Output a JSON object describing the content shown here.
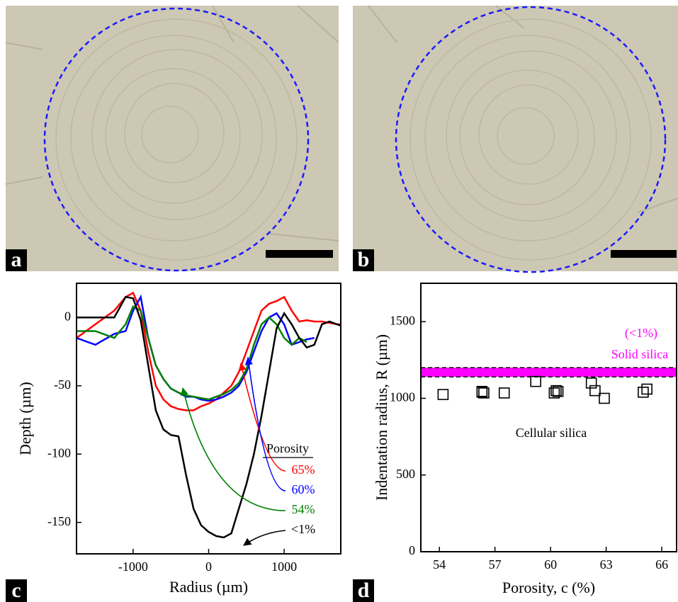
{
  "panels": [
    "a",
    "b",
    "c",
    "d"
  ],
  "chart_data": [
    {
      "type": "line",
      "xlabel": "Radius (µm)",
      "ylabel": "Depth (µm)",
      "xlim": [
        -1750,
        1750
      ],
      "xticks": [
        -1000,
        0,
        1000
      ],
      "ylim": [
        -173,
        25
      ],
      "yticks": [
        0,
        -50,
        -100,
        -150
      ],
      "legend_title": "Porosity",
      "x": [
        -1750,
        -1500,
        -1250,
        -1100,
        -1000,
        -900,
        -800,
        -700,
        -600,
        -500,
        -400,
        -300,
        -200,
        -100,
        0,
        100,
        200,
        300,
        400,
        500,
        600,
        700,
        800,
        900,
        1000,
        1100,
        1200,
        1300,
        1400,
        1500,
        1600,
        1700,
        1750
      ],
      "series": [
        {
          "name": "65%",
          "color": "#ff0000",
          "values": [
            -15,
            -5,
            5,
            15,
            18,
            5,
            -25,
            -50,
            -60,
            -65,
            -67,
            -68,
            -68,
            -65,
            -63,
            -60,
            -55,
            -50,
            -40,
            -25,
            -10,
            5,
            10,
            12,
            15,
            5,
            -3,
            -2,
            -3,
            -3,
            -4,
            -5,
            -5
          ]
        },
        {
          "name": "60%",
          "color": "#0000ff",
          "values": [
            -15,
            -20,
            -12,
            -10,
            5,
            15,
            -15,
            -35,
            -45,
            -52,
            -55,
            -58,
            -58,
            -60,
            -61,
            -60,
            -58,
            -55,
            -50,
            -40,
            -25,
            -10,
            0,
            3,
            -5,
            -20,
            -18,
            -16,
            -15,
            null,
            null,
            null,
            null
          ]
        },
        {
          "name": "54%",
          "color": "#008000",
          "values": [
            -10,
            -10,
            -15,
            -5,
            8,
            5,
            -15,
            -35,
            -45,
            -52,
            -55,
            -57,
            -58,
            -59,
            -60,
            -58,
            -56,
            -53,
            -48,
            -38,
            -20,
            -5,
            0,
            -5,
            -15,
            -20,
            -15,
            -18,
            null,
            null,
            null,
            null,
            null
          ]
        },
        {
          "name": "<1%",
          "color": "#000000",
          "values": [
            0,
            0,
            0,
            15,
            14,
            -2,
            -35,
            -68,
            -82,
            -86,
            -87,
            -115,
            -140,
            -152,
            -157,
            -160,
            -161,
            -158,
            -140,
            -122,
            -100,
            -72,
            -40,
            -8,
            3,
            -5,
            -15,
            -22,
            -20,
            -5,
            -3,
            -5,
            -6
          ]
        }
      ]
    },
    {
      "type": "scatter",
      "xlabel": "Porosity, c (%)",
      "ylabel": "Indentation radius, R (µm)",
      "xlim": [
        53,
        66.8
      ],
      "xticks": [
        54,
        57,
        60,
        63,
        66
      ],
      "ylim": [
        0,
        1750
      ],
      "yticks": [
        0,
        500,
        1000,
        1500
      ],
      "color": "#000000",
      "x": [
        54.2,
        56.3,
        56.3,
        56.4,
        57.5,
        59.2,
        60.2,
        60.3,
        60.4,
        62.2,
        62.4,
        62.9,
        65.0,
        65.2
      ],
      "values": [
        1025,
        1045,
        1040,
        1035,
        1035,
        1110,
        1035,
        1050,
        1045,
        1100,
        1050,
        1000,
        1040,
        1060
      ],
      "annotation": "Cellular silica",
      "band": {
        "label": "Solid silica",
        "sublabel": "(<1%)",
        "low": 1140,
        "high": 1200,
        "color": "#ff00ff"
      }
    }
  ]
}
